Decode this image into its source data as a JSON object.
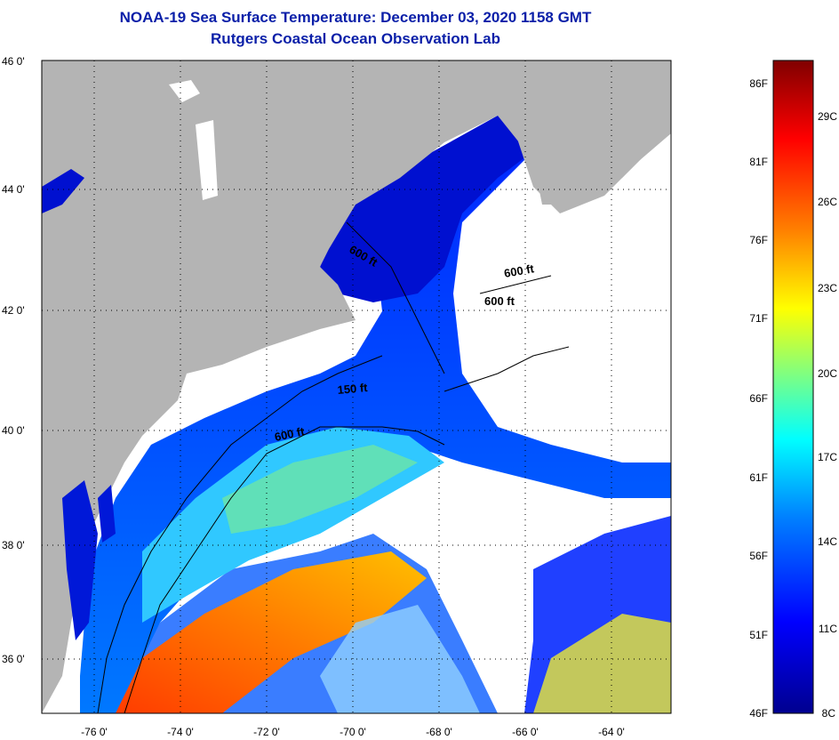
{
  "header": {
    "title": "NOAA-19 Sea Surface Temperature:  December 03, 2020 1158 GMT",
    "subtitle": "Rutgers Coastal Ocean Observation Lab"
  },
  "map": {
    "lat_labels": [
      "46 0'",
      "44 0'",
      "42 0'",
      "40 0'",
      "38 0'",
      "36 0'"
    ],
    "lon_labels": [
      "-76 0'",
      "-74 0'",
      "-72 0'",
      "-70 0'",
      "-68 0'",
      "-66 0'",
      "-64 0'"
    ],
    "contour_labels": [
      "600 ft",
      "600 ft",
      "600 ft",
      "150 ft",
      "600 ft"
    ],
    "colors": {
      "land": "#b4b4b4",
      "no_data": "#ffffff"
    }
  },
  "colorbar": {
    "fahrenheit_labels": [
      "86F",
      "81F",
      "76F",
      "71F",
      "66F",
      "61F",
      "56F",
      "51F",
      "46F"
    ],
    "celsius_labels": [
      "29C",
      "26C",
      "23C",
      "20C",
      "17C",
      "14C",
      "11C",
      "8C"
    ],
    "colors": [
      "#00008f",
      "#0000ff",
      "#0080ff",
      "#00ffff",
      "#80ff80",
      "#ffff00",
      "#ff8000",
      "#ff0000",
      "#800000"
    ]
  }
}
